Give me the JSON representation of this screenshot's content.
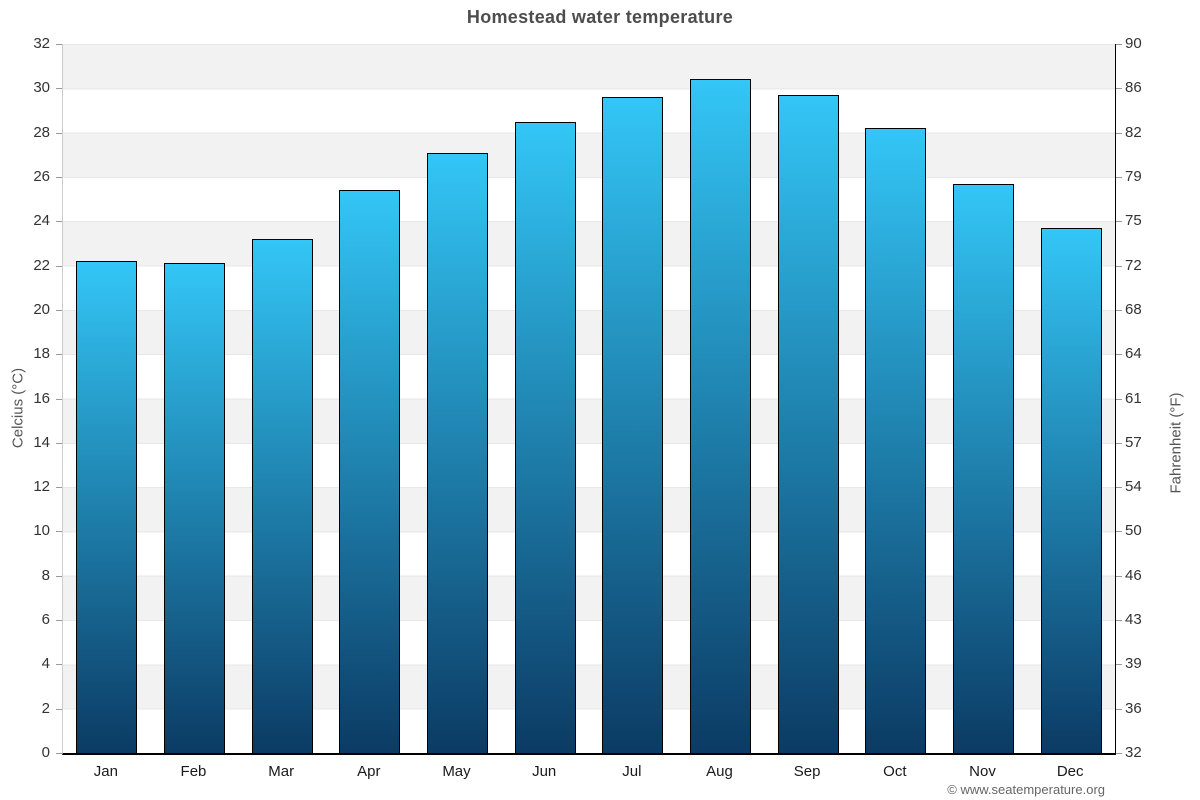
{
  "title": "Homestead water temperature",
  "footer": "© www.seatemperature.org",
  "y_axis_left": {
    "label": "Celcius (°C)",
    "ticks": [
      0,
      2,
      4,
      6,
      8,
      10,
      12,
      14,
      16,
      18,
      20,
      22,
      24,
      26,
      28,
      30,
      32
    ]
  },
  "y_axis_right": {
    "label": "Fahrenheit (°F)",
    "ticks": [
      "32",
      "36",
      "39",
      "43",
      "46",
      "50",
      "54",
      "57",
      "61",
      "64",
      "68",
      "72",
      "75",
      "79",
      "82",
      "86",
      "90"
    ]
  },
  "chart_data": {
    "type": "bar",
    "title": "Homestead water temperature",
    "categories": [
      "Jan",
      "Feb",
      "Mar",
      "Apr",
      "May",
      "Jun",
      "Jul",
      "Aug",
      "Sep",
      "Oct",
      "Nov",
      "Dec"
    ],
    "values": [
      22.2,
      22.1,
      23.2,
      25.4,
      27.1,
      28.5,
      29.6,
      30.4,
      29.7,
      28.2,
      25.7,
      23.7
    ],
    "unit": "°C",
    "xlabel": "",
    "ylabel_left": "Celcius (°C)",
    "ylabel_right": "Fahrenheit (°F)",
    "ylim": [
      0,
      32
    ],
    "ylim_fahrenheit": [
      32,
      90
    ],
    "grid": "alternating horizontal bands every 2°C with light gridlines",
    "legend": "none",
    "band_color": "#f2f2f2",
    "gridline_color": "#e7e7e7",
    "bar_border_color": "#000000",
    "bar_gradient_top": "#33c6f6",
    "bar_gradient_bottom": "#0b3b64"
  }
}
